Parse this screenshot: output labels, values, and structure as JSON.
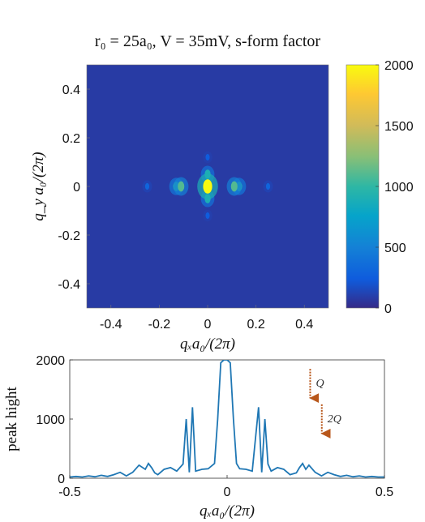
{
  "chart_data": [
    {
      "type": "heatmap",
      "title": "r₀ = 25a₀, V = 35mV, s-form factor",
      "xlabel": "qₓa₀/(2π)",
      "ylabel": "q_y a₀/(2π)",
      "xlim": [
        -0.5,
        0.5
      ],
      "ylim": [
        -0.5,
        0.5
      ],
      "xticks": [
        "-0.4",
        "-0.2",
        "0",
        "0.2",
        "0.4"
      ],
      "yticks": [
        "0.4",
        "0.2",
        "0",
        "-0.2",
        "-0.4"
      ],
      "colorbar": {
        "range": [
          0,
          2000
        ],
        "ticks": [
          "2000",
          "1500",
          "1000",
          "500",
          "0"
        ]
      },
      "background_value": 80,
      "peaks": [
        {
          "x": 0.0,
          "y": 0.0,
          "value": 2000
        },
        {
          "x": 0.0,
          "y": 0.05,
          "value": 900
        },
        {
          "x": 0.0,
          "y": -0.05,
          "value": 900
        },
        {
          "x": -0.13,
          "y": 0.0,
          "value": 950
        },
        {
          "x": -0.11,
          "y": 0.0,
          "value": 1100
        },
        {
          "x": 0.11,
          "y": 0.0,
          "value": 1100
        },
        {
          "x": 0.13,
          "y": 0.0,
          "value": 950
        },
        {
          "x": -0.25,
          "y": 0.0,
          "value": 300
        },
        {
          "x": 0.25,
          "y": 0.0,
          "value": 300
        },
        {
          "x": 0.0,
          "y": 0.12,
          "value": 250
        },
        {
          "x": 0.0,
          "y": -0.12,
          "value": 250
        }
      ]
    },
    {
      "type": "line",
      "xlabel": "qₓa₀/(2π)",
      "ylabel": "peak hight",
      "xlim": [
        -0.5,
        0.5
      ],
      "ylim": [
        0,
        2000
      ],
      "xticks": [
        "-0.5",
        "0",
        "0.5"
      ],
      "yticks": [
        "2000",
        "1000",
        "0"
      ],
      "x": [
        -0.5,
        -0.48,
        -0.46,
        -0.44,
        -0.42,
        -0.4,
        -0.38,
        -0.36,
        -0.34,
        -0.32,
        -0.3,
        -0.28,
        -0.26,
        -0.25,
        -0.24,
        -0.23,
        -0.22,
        -0.2,
        -0.18,
        -0.16,
        -0.14,
        -0.13,
        -0.12,
        -0.11,
        -0.1,
        -0.08,
        -0.06,
        -0.04,
        -0.03,
        -0.02,
        -0.01,
        0,
        0.01,
        0.02,
        0.03,
        0.04,
        0.06,
        0.08,
        0.1,
        0.11,
        0.12,
        0.13,
        0.14,
        0.16,
        0.18,
        0.2,
        0.22,
        0.23,
        0.24,
        0.25,
        0.26,
        0.28,
        0.3,
        0.32,
        0.34,
        0.36,
        0.38,
        0.4,
        0.42,
        0.44,
        0.46,
        0.48,
        0.5
      ],
      "y": [
        20,
        30,
        20,
        40,
        25,
        50,
        30,
        60,
        100,
        40,
        100,
        220,
        150,
        250,
        180,
        90,
        60,
        150,
        180,
        120,
        240,
        1000,
        100,
        1200,
        120,
        150,
        160,
        250,
        1000,
        1950,
        2000,
        2000,
        1950,
        1000,
        250,
        160,
        150,
        120,
        1200,
        100,
        1000,
        240,
        120,
        180,
        150,
        60,
        90,
        180,
        250,
        150,
        220,
        100,
        40,
        100,
        60,
        30,
        50,
        25,
        40,
        20,
        30,
        20,
        20
      ],
      "annotations": [
        {
          "label": "Q",
          "x": 0.13,
          "y": 1300
        },
        {
          "label": "2Q",
          "x": 0.25,
          "y": 700
        }
      ]
    }
  ]
}
